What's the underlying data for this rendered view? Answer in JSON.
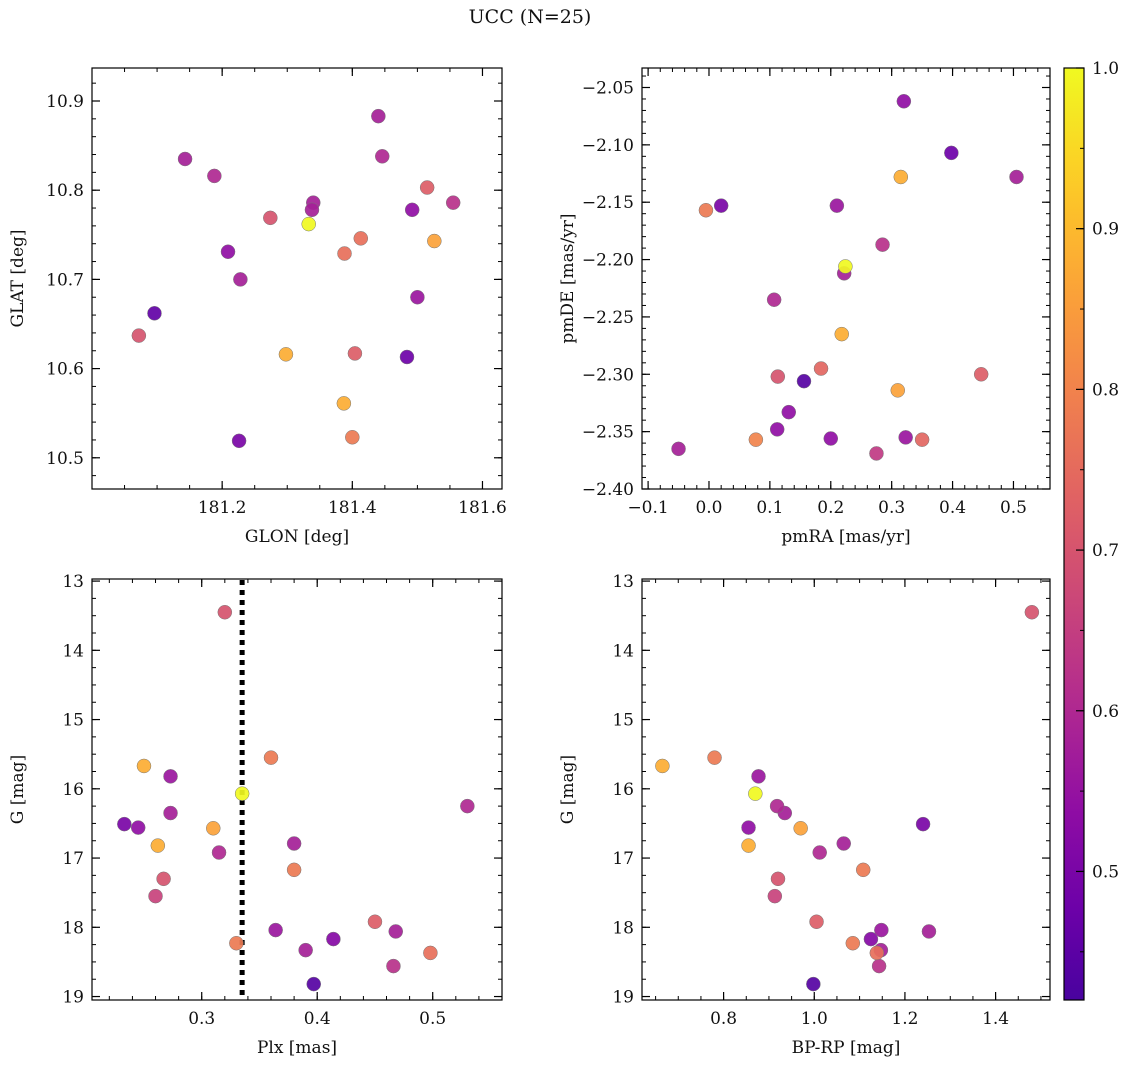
{
  "figure": {
    "title": "UCC (N=25)"
  },
  "colorbar": {
    "colormap": "plasma",
    "range": [
      0.42,
      1.0
    ],
    "ticks": [
      "0.5",
      "0.6",
      "0.7",
      "0.8",
      "0.9",
      "1.0"
    ]
  },
  "chart_data": [
    {
      "type": "scatter",
      "xlabel": "GLON [deg]",
      "ylabel": "GLAT [deg]",
      "xlim": [
        181.0,
        181.63
      ],
      "ylim": [
        10.465,
        10.937
      ],
      "xticks": [
        "181.2",
        "181.4",
        "181.6"
      ],
      "yticks": [
        "10.5",
        "10.6",
        "10.7",
        "10.8",
        "10.9"
      ],
      "points": [
        {
          "x": 181.44,
          "y": 10.883,
          "c": 0.58
        },
        {
          "x": 181.446,
          "y": 10.838,
          "c": 0.6
        },
        {
          "x": 181.143,
          "y": 10.835,
          "c": 0.58
        },
        {
          "x": 181.188,
          "y": 10.816,
          "c": 0.6
        },
        {
          "x": 181.515,
          "y": 10.803,
          "c": 0.72
        },
        {
          "x": 181.555,
          "y": 10.786,
          "c": 0.62
        },
        {
          "x": 181.34,
          "y": 10.786,
          "c": 0.58
        },
        {
          "x": 181.492,
          "y": 10.778,
          "c": 0.54
        },
        {
          "x": 181.338,
          "y": 10.778,
          "c": 0.58
        },
        {
          "x": 181.274,
          "y": 10.769,
          "c": 0.7
        },
        {
          "x": 181.333,
          "y": 10.762,
          "c": 1.0
        },
        {
          "x": 181.413,
          "y": 10.746,
          "c": 0.76
        },
        {
          "x": 181.526,
          "y": 10.743,
          "c": 0.86
        },
        {
          "x": 181.209,
          "y": 10.731,
          "c": 0.54
        },
        {
          "x": 181.388,
          "y": 10.729,
          "c": 0.76
        },
        {
          "x": 181.228,
          "y": 10.7,
          "c": 0.58
        },
        {
          "x": 181.5,
          "y": 10.68,
          "c": 0.56
        },
        {
          "x": 181.096,
          "y": 10.662,
          "c": 0.46
        },
        {
          "x": 181.072,
          "y": 10.637,
          "c": 0.7
        },
        {
          "x": 181.404,
          "y": 10.617,
          "c": 0.72
        },
        {
          "x": 181.298,
          "y": 10.616,
          "c": 0.88
        },
        {
          "x": 181.484,
          "y": 10.613,
          "c": 0.48
        },
        {
          "x": 181.387,
          "y": 10.561,
          "c": 0.88
        },
        {
          "x": 181.4,
          "y": 10.523,
          "c": 0.78
        },
        {
          "x": 181.226,
          "y": 10.519,
          "c": 0.5
        }
      ]
    },
    {
      "type": "scatter",
      "xlabel": "pmRA [mas/yr]",
      "ylabel": "pmDE [mas/yr]",
      "xlim": [
        -0.11,
        0.56
      ],
      "ylim": [
        -2.4,
        -2.033
      ],
      "xticks": [
        "−0.1",
        "0.0",
        "0.1",
        "0.2",
        "0.3",
        "0.4",
        "0.5"
      ],
      "yticks": [
        "−2.40",
        "−2.35",
        "−2.30",
        "−2.25",
        "−2.20",
        "−2.15",
        "−2.10",
        "−2.05"
      ],
      "points": [
        {
          "x": 0.32,
          "y": -2.062,
          "c": 0.54
        },
        {
          "x": 0.398,
          "y": -2.107,
          "c": 0.48
        },
        {
          "x": 0.505,
          "y": -2.128,
          "c": 0.58
        },
        {
          "x": 0.315,
          "y": -2.128,
          "c": 0.88
        },
        {
          "x": -0.005,
          "y": -2.157,
          "c": 0.78
        },
        {
          "x": 0.02,
          "y": -2.153,
          "c": 0.5
        },
        {
          "x": 0.21,
          "y": -2.153,
          "c": 0.56
        },
        {
          "x": 0.285,
          "y": -2.187,
          "c": 0.62
        },
        {
          "x": 0.224,
          "y": -2.206,
          "c": 1.0
        },
        {
          "x": 0.222,
          "y": -2.212,
          "c": 0.58
        },
        {
          "x": 0.107,
          "y": -2.235,
          "c": 0.6
        },
        {
          "x": 0.218,
          "y": -2.265,
          "c": 0.88
        },
        {
          "x": 0.184,
          "y": -2.295,
          "c": 0.74
        },
        {
          "x": 0.447,
          "y": -2.3,
          "c": 0.72
        },
        {
          "x": 0.113,
          "y": -2.302,
          "c": 0.7
        },
        {
          "x": 0.156,
          "y": -2.306,
          "c": 0.44
        },
        {
          "x": 0.31,
          "y": -2.314,
          "c": 0.86
        },
        {
          "x": 0.131,
          "y": -2.333,
          "c": 0.54
        },
        {
          "x": 0.112,
          "y": -2.348,
          "c": 0.54
        },
        {
          "x": 0.323,
          "y": -2.355,
          "c": 0.56
        },
        {
          "x": 0.2,
          "y": -2.356,
          "c": 0.54
        },
        {
          "x": 0.077,
          "y": -2.357,
          "c": 0.8
        },
        {
          "x": 0.35,
          "y": -2.357,
          "c": 0.74
        },
        {
          "x": -0.05,
          "y": -2.365,
          "c": 0.58
        },
        {
          "x": 0.275,
          "y": -2.369,
          "c": 0.64
        }
      ]
    },
    {
      "type": "scatter",
      "xlabel": "Plx [mas]",
      "ylabel": "G [mag]",
      "xlim": [
        0.205,
        0.56
      ],
      "ylim": [
        19.05,
        12.97
      ],
      "xticks": [
        "0.3",
        "0.4",
        "0.5"
      ],
      "yticks": [
        "13",
        "14",
        "15",
        "16",
        "17",
        "18",
        "19"
      ],
      "reference_line": {
        "x": 0.335,
        "style": "dotted"
      },
      "points": [
        {
          "x": 0.32,
          "y": 13.45,
          "c": 0.7
        },
        {
          "x": 0.36,
          "y": 15.55,
          "c": 0.78
        },
        {
          "x": 0.25,
          "y": 15.67,
          "c": 0.88
        },
        {
          "x": 0.273,
          "y": 15.82,
          "c": 0.56
        },
        {
          "x": 0.335,
          "y": 16.07,
          "c": 1.0
        },
        {
          "x": 0.53,
          "y": 16.25,
          "c": 0.6
        },
        {
          "x": 0.273,
          "y": 16.35,
          "c": 0.58
        },
        {
          "x": 0.233,
          "y": 16.51,
          "c": 0.5
        },
        {
          "x": 0.245,
          "y": 16.56,
          "c": 0.54
        },
        {
          "x": 0.31,
          "y": 16.57,
          "c": 0.86
        },
        {
          "x": 0.38,
          "y": 16.79,
          "c": 0.58
        },
        {
          "x": 0.262,
          "y": 16.82,
          "c": 0.88
        },
        {
          "x": 0.315,
          "y": 16.92,
          "c": 0.6
        },
        {
          "x": 0.38,
          "y": 17.17,
          "c": 0.78
        },
        {
          "x": 0.267,
          "y": 17.3,
          "c": 0.7
        },
        {
          "x": 0.26,
          "y": 17.55,
          "c": 0.66
        },
        {
          "x": 0.45,
          "y": 17.92,
          "c": 0.72
        },
        {
          "x": 0.364,
          "y": 18.04,
          "c": 0.56
        },
        {
          "x": 0.468,
          "y": 18.06,
          "c": 0.58
        },
        {
          "x": 0.414,
          "y": 18.17,
          "c": 0.52
        },
        {
          "x": 0.33,
          "y": 18.23,
          "c": 0.78
        },
        {
          "x": 0.39,
          "y": 18.33,
          "c": 0.58
        },
        {
          "x": 0.498,
          "y": 18.37,
          "c": 0.76
        },
        {
          "x": 0.466,
          "y": 18.56,
          "c": 0.62
        },
        {
          "x": 0.397,
          "y": 18.82,
          "c": 0.44
        }
      ]
    },
    {
      "type": "scatter",
      "xlabel": "BP-RP [mag]",
      "ylabel": "G [mag]",
      "xlim": [
        0.62,
        1.52
      ],
      "ylim": [
        19.05,
        12.97
      ],
      "xticks": [
        "0.8",
        "1.0",
        "1.2",
        "1.4"
      ],
      "yticks": [
        "13",
        "14",
        "15",
        "16",
        "17",
        "18",
        "19"
      ],
      "points": [
        {
          "x": 1.48,
          "y": 13.45,
          "c": 0.7
        },
        {
          "x": 0.78,
          "y": 15.55,
          "c": 0.78
        },
        {
          "x": 0.665,
          "y": 15.67,
          "c": 0.88
        },
        {
          "x": 0.877,
          "y": 15.82,
          "c": 0.56
        },
        {
          "x": 0.87,
          "y": 16.07,
          "c": 1.0
        },
        {
          "x": 0.918,
          "y": 16.25,
          "c": 0.6
        },
        {
          "x": 0.935,
          "y": 16.35,
          "c": 0.58
        },
        {
          "x": 1.24,
          "y": 16.51,
          "c": 0.5
        },
        {
          "x": 0.855,
          "y": 16.56,
          "c": 0.54
        },
        {
          "x": 0.97,
          "y": 16.57,
          "c": 0.86
        },
        {
          "x": 1.065,
          "y": 16.79,
          "c": 0.58
        },
        {
          "x": 0.855,
          "y": 16.82,
          "c": 0.88
        },
        {
          "x": 1.012,
          "y": 16.92,
          "c": 0.6
        },
        {
          "x": 1.108,
          "y": 17.17,
          "c": 0.78
        },
        {
          "x": 0.92,
          "y": 17.3,
          "c": 0.7
        },
        {
          "x": 0.913,
          "y": 17.55,
          "c": 0.66
        },
        {
          "x": 1.005,
          "y": 17.92,
          "c": 0.72
        },
        {
          "x": 1.148,
          "y": 18.04,
          "c": 0.56
        },
        {
          "x": 1.253,
          "y": 18.06,
          "c": 0.58
        },
        {
          "x": 1.125,
          "y": 18.17,
          "c": 0.52
        },
        {
          "x": 1.085,
          "y": 18.23,
          "c": 0.78
        },
        {
          "x": 1.147,
          "y": 18.33,
          "c": 0.58
        },
        {
          "x": 1.138,
          "y": 18.37,
          "c": 0.76
        },
        {
          "x": 1.143,
          "y": 18.56,
          "c": 0.62
        },
        {
          "x": 0.998,
          "y": 18.82,
          "c": 0.44
        }
      ]
    }
  ]
}
